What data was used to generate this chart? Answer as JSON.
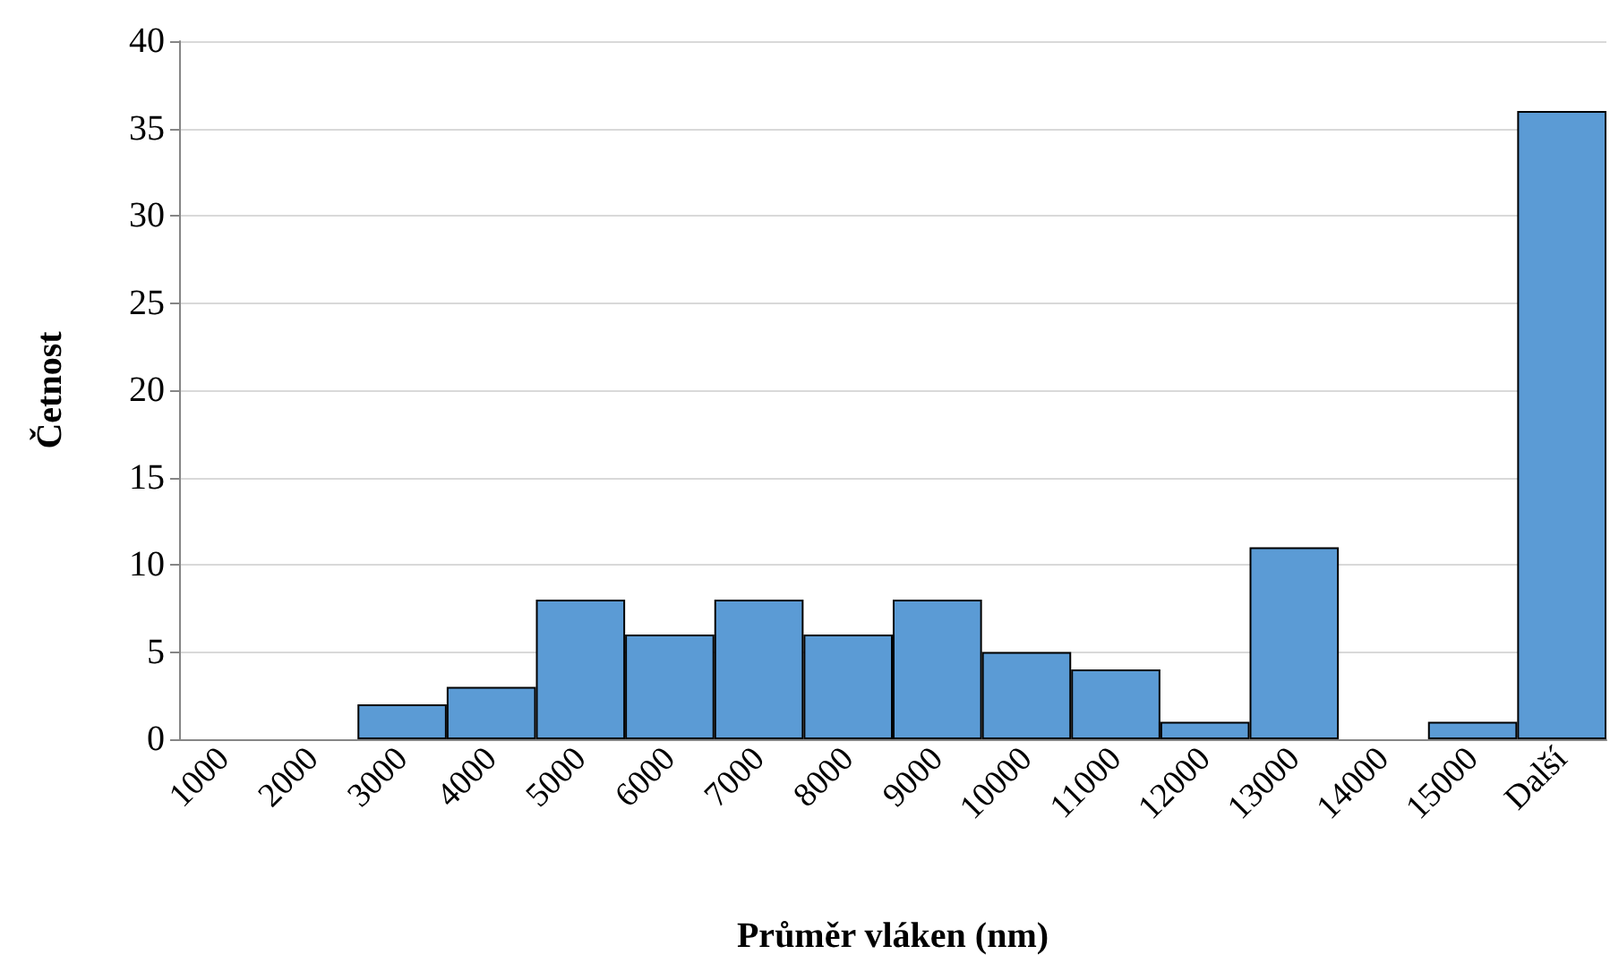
{
  "chart_data": {
    "type": "bar",
    "xlabel": "Průměr vláken (nm)",
    "ylabel": "Četnost",
    "categories": [
      "1000",
      "2000",
      "3000",
      "4000",
      "5000",
      "6000",
      "7000",
      "8000",
      "9000",
      "10000",
      "11000",
      "12000",
      "13000",
      "14000",
      "15000",
      "Další"
    ],
    "values": [
      0,
      0,
      2,
      3,
      8,
      6,
      8,
      6,
      8,
      5,
      4,
      1,
      11,
      0,
      1,
      36
    ],
    "color": "#5b9bd5",
    "ylim": [
      0,
      40
    ],
    "yticks": [
      0,
      5,
      10,
      15,
      20,
      25,
      30,
      35,
      40
    ],
    "grid": "y"
  }
}
